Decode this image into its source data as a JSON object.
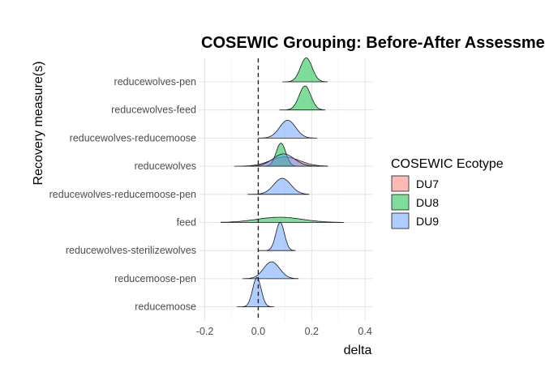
{
  "chart_data": {
    "type": "ridgeline",
    "title": "COSEWIC Grouping: Before-After Assessmer",
    "xlabel": "delta",
    "ylabel": "Recovery measure(s)",
    "xlim": [
      -0.22,
      0.43
    ],
    "x_ticks": [
      "-0.2",
      "0.0",
      "0.2",
      "0.4"
    ],
    "reference_line": 0,
    "grid": true,
    "legend": {
      "title": "COSEWIC Ecotype",
      "position": "right",
      "items": [
        {
          "name": "DU7",
          "color": "#f8766d"
        },
        {
          "name": "DU8",
          "color": "#00ba38"
        },
        {
          "name": "DU9",
          "color": "#619cff"
        }
      ]
    },
    "categories": [
      "reducewolves-pen",
      "reducewolves-feed",
      "reducewolves-reducemoose",
      "reducewolves",
      "reducewolves-reducemoose-pen",
      "feed",
      "reducewolves-sterilizewolves",
      "reducemoose-pen",
      "reducemoose"
    ],
    "densities": [
      {
        "category": "reducewolves-pen",
        "group": "DU8",
        "mean": 0.18,
        "sd": 0.022,
        "height": 0.78,
        "min": 0.09,
        "max": 0.26
      },
      {
        "category": "reducewolves-feed",
        "group": "DU8",
        "mean": 0.175,
        "sd": 0.022,
        "height": 0.78,
        "min": 0.08,
        "max": 0.25
      },
      {
        "category": "reducewolves-reducemoose",
        "group": "DU9",
        "mean": 0.11,
        "sd": 0.03,
        "height": 0.58,
        "min": 0.0,
        "max": 0.22
      },
      {
        "category": "reducewolves",
        "group": "DU7",
        "mean": 0.1,
        "sd": 0.055,
        "height": 0.3,
        "min": -0.09,
        "max": 0.26
      },
      {
        "category": "reducewolves",
        "group": "DU8",
        "mean": 0.085,
        "sd": 0.018,
        "height": 0.75,
        "min": 0.0,
        "max": 0.2
      },
      {
        "category": "reducewolves",
        "group": "DU9",
        "mean": 0.095,
        "sd": 0.04,
        "height": 0.4,
        "min": -0.05,
        "max": 0.26
      },
      {
        "category": "reducewolves-reducemoose-pen",
        "group": "DU9",
        "mean": 0.09,
        "sd": 0.032,
        "height": 0.52,
        "min": -0.04,
        "max": 0.19
      },
      {
        "category": "feed",
        "group": "DU8",
        "mean": 0.08,
        "sd": 0.085,
        "height": 0.17,
        "min": -0.14,
        "max": 0.32
      },
      {
        "category": "reducewolves-sterilizewolves",
        "group": "DU9",
        "mean": 0.082,
        "sd": 0.016,
        "height": 0.92,
        "min": 0.0,
        "max": 0.14
      },
      {
        "category": "reducemoose-pen",
        "group": "DU9",
        "mean": 0.05,
        "sd": 0.03,
        "height": 0.55,
        "min": -0.06,
        "max": 0.15
      },
      {
        "category": "reducemoose",
        "group": "DU9",
        "mean": -0.005,
        "sd": 0.016,
        "height": 0.95,
        "min": -0.08,
        "max": 0.06
      }
    ]
  }
}
